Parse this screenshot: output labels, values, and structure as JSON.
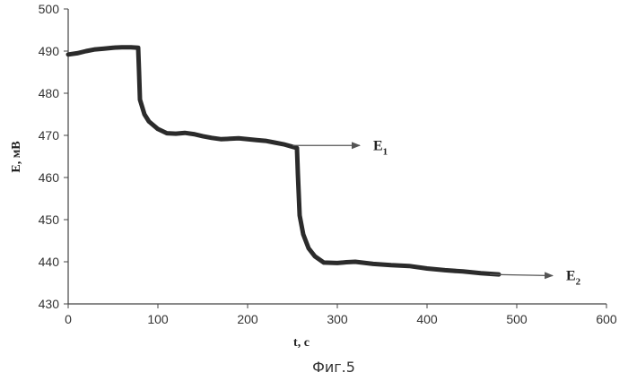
{
  "chart_data": {
    "type": "line",
    "xlabel": "t, c",
    "ylabel": "E, мВ",
    "xlim": [
      0,
      600
    ],
    "ylim": [
      430,
      500
    ],
    "x_ticks": [
      "0",
      "100",
      "200",
      "300",
      "400",
      "500",
      "600"
    ],
    "y_ticks": [
      "430",
      "440",
      "450",
      "460",
      "470",
      "480",
      "490",
      "500"
    ],
    "grid": false,
    "legend": "none",
    "series_color": "#2b2b2b",
    "arrow_color": "#555555",
    "series": [
      {
        "x": [
          0,
          10,
          20,
          30,
          40,
          50,
          60,
          70,
          78,
          79,
          80,
          85,
          90,
          100,
          110,
          120,
          130,
          140,
          150,
          160,
          170,
          180,
          190,
          200,
          210,
          220,
          230,
          240,
          250,
          255,
          256,
          258,
          262,
          268,
          275,
          285,
          300,
          310,
          320,
          340,
          360,
          380,
          400,
          420,
          440,
          460,
          480
        ],
        "y": [
          489.2,
          489.5,
          490.0,
          490.4,
          490.6,
          490.8,
          490.9,
          490.9,
          490.8,
          485.0,
          478.5,
          475.0,
          473.3,
          471.5,
          470.5,
          470.4,
          470.6,
          470.3,
          469.8,
          469.4,
          469.1,
          469.2,
          469.3,
          469.1,
          468.9,
          468.7,
          468.3,
          467.9,
          467.3,
          467.0,
          461.0,
          451.0,
          446.5,
          443.2,
          441.3,
          439.8,
          439.7,
          439.9,
          440.0,
          439.5,
          439.2,
          439.0,
          438.4,
          438.0,
          437.7,
          437.3,
          437.0
        ]
      }
    ],
    "annotations": [
      {
        "label": "E",
        "sub": "1",
        "from": [
          250,
          467.6
        ],
        "to": [
          325,
          467.6
        ]
      },
      {
        "label": "E",
        "sub": "2",
        "from": [
          470,
          437.0
        ],
        "to": [
          540,
          436.7
        ]
      }
    ]
  },
  "caption": "Фиг.5"
}
